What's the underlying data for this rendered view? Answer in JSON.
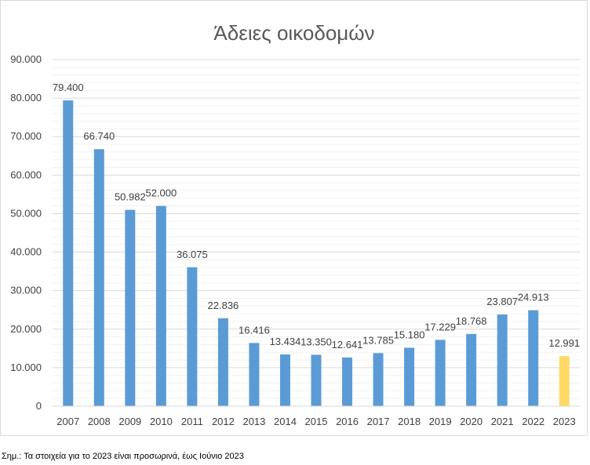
{
  "chart_data": {
    "type": "bar",
    "title": "Άδειες οικοδομών",
    "categories": [
      "2007",
      "2008",
      "2009",
      "2010",
      "2011",
      "2012",
      "2013",
      "2014",
      "2015",
      "2016",
      "2017",
      "2018",
      "2019",
      "2020",
      "2021",
      "2022",
      "2023"
    ],
    "values": [
      79400,
      66740,
      50982,
      52000,
      36075,
      22836,
      16416,
      13434,
      13350,
      12641,
      13785,
      15180,
      17229,
      18768,
      23807,
      24913,
      12991
    ],
    "data_labels": [
      "79.400",
      "66.740",
      "50.982",
      "52.000",
      "36.075",
      "22.836",
      "16.416",
      "13.434",
      "13.350",
      "12.641",
      "13.785",
      "15.180",
      "17.229",
      "18.768",
      "23.807",
      "24.913",
      "12.991"
    ],
    "y_ticks": [
      0,
      10000,
      20000,
      30000,
      40000,
      50000,
      60000,
      70000,
      80000,
      90000
    ],
    "y_tick_labels": [
      "0",
      "10.000",
      "20.000",
      "30.000",
      "40.000",
      "50.000",
      "60.000",
      "70.000",
      "80.000",
      "90.000"
    ],
    "ylim": [
      0,
      90000
    ],
    "xlabel": "",
    "ylabel": "",
    "grid": true,
    "legend": "none",
    "colors": {
      "bar": "#5b9bd5",
      "highlight_bar": "#ffd966",
      "grid_major": "#d9d9d9",
      "grid_minor": "#f0f0f0"
    },
    "highlight_categories": [
      "2023"
    ]
  },
  "footnote": "Σημ.: Τα στοιχεία για το 2023 είναι προσωρινά, έως Ιούνιο 2023"
}
